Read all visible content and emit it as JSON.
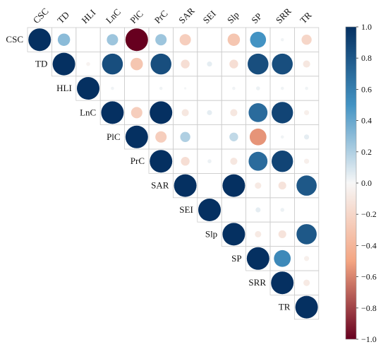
{
  "chart_data": {
    "type": "heatmap",
    "subtype": "correlogram-upper-circles",
    "variables": [
      "CSC",
      "TD",
      "HLI",
      "LnC",
      "PlC",
      "PrC",
      "SAR",
      "SEI",
      "Slp",
      "SP",
      "SRR",
      "TR"
    ],
    "correlation_matrix": [
      [
        1.0,
        0.3,
        0.0,
        0.25,
        -1.0,
        0.25,
        -0.25,
        0.0,
        -0.3,
        0.5,
        0.02,
        -0.2
      ],
      [
        0.3,
        1.0,
        -0.03,
        0.85,
        -0.3,
        0.85,
        -0.15,
        0.05,
        -0.15,
        0.85,
        0.85,
        -0.1
      ],
      [
        0.0,
        -0.03,
        1.0,
        0.02,
        0.0,
        0.02,
        0.01,
        0.0,
        0.02,
        0.03,
        0.02,
        0.02
      ],
      [
        0.25,
        0.85,
        0.02,
        1.0,
        -0.25,
        1.0,
        -0.1,
        0.05,
        -0.1,
        0.7,
        0.9,
        -0.05
      ],
      [
        -1.0,
        -0.3,
        0.0,
        -0.25,
        1.0,
        -0.25,
        0.2,
        0.0,
        0.15,
        -0.55,
        0.02,
        0.05
      ],
      [
        0.25,
        0.85,
        0.02,
        1.0,
        -0.25,
        1.0,
        -0.15,
        0.03,
        -0.1,
        0.7,
        0.9,
        -0.05
      ],
      [
        -0.25,
        -0.15,
        0.01,
        -0.1,
        0.2,
        -0.15,
        1.0,
        0.0,
        1.0,
        -0.08,
        -0.12,
        0.8
      ],
      [
        0.0,
        0.05,
        0.0,
        0.05,
        0.0,
        0.03,
        0.0,
        1.0,
        0.0,
        0.05,
        0.03,
        0.0
      ],
      [
        -0.3,
        -0.15,
        0.02,
        -0.1,
        0.15,
        -0.1,
        1.0,
        0.0,
        1.0,
        -0.08,
        -0.12,
        0.8
      ],
      [
        0.5,
        0.85,
        0.03,
        0.7,
        -0.55,
        0.7,
        -0.08,
        0.05,
        -0.08,
        1.0,
        0.55,
        -0.05
      ],
      [
        0.02,
        0.85,
        0.02,
        0.9,
        0.02,
        0.9,
        -0.12,
        0.03,
        -0.12,
        0.55,
        1.0,
        -0.08
      ],
      [
        -0.2,
        -0.1,
        0.02,
        -0.05,
        0.05,
        -0.05,
        0.8,
        0.0,
        0.8,
        -0.05,
        -0.08,
        1.0
      ]
    ],
    "value_range": [
      -1.0,
      1.0
    ],
    "legend": {
      "position": "right",
      "ticks": [
        "1.0",
        "0.8",
        "0.6",
        "0.4",
        "0.2",
        "0.0",
        "−0.2",
        "−0.4",
        "−0.6",
        "−0.8",
        "−1.0"
      ],
      "tick_values": [
        1.0,
        0.8,
        0.6,
        0.4,
        0.2,
        0.0,
        -0.2,
        -0.4,
        -0.6,
        -0.8,
        -1.0
      ]
    },
    "colors": {
      "positive_max": "#053061",
      "positive_mid": "#4393c3",
      "neutral": "#f7f7f7",
      "negative_mid": "#f4a582",
      "negative_max": "#67001f",
      "grid": "#cccccc"
    },
    "grid": true
  }
}
